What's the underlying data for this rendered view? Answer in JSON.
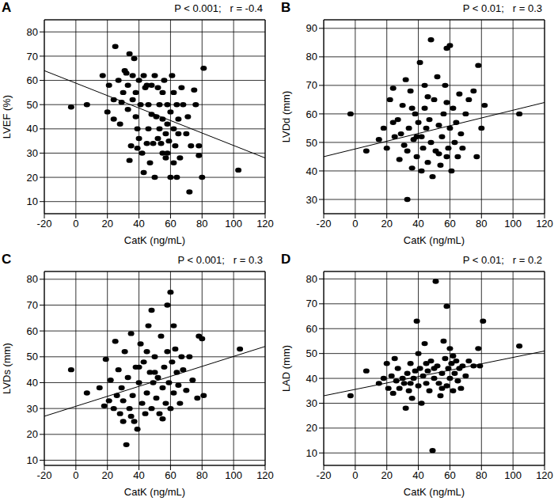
{
  "chart_data": [
    {
      "type": "scatter",
      "title": "A",
      "annotation": "P < 0.001;   r = -0.4",
      "x_label": "CatK (ng/mL)",
      "y_label": "LVEF (%)",
      "xlim": [
        -20,
        120
      ],
      "xticks": [
        -20,
        0,
        20,
        40,
        60,
        80,
        100,
        120
      ],
      "ylim": [
        5,
        85
      ],
      "yticks": [
        10,
        20,
        30,
        40,
        50,
        60,
        70,
        80
      ],
      "grid": true,
      "series": [
        {
          "type": "scatter",
          "marker": "circle",
          "color": "#000000",
          "x": [
            -3,
            7,
            17,
            20,
            21,
            24,
            25,
            24,
            27,
            28,
            30,
            31,
            32,
            33,
            34,
            35,
            34,
            36,
            37,
            38,
            38,
            39,
            39,
            40,
            41,
            42,
            43,
            43,
            44,
            45,
            46,
            47,
            48,
            48,
            49,
            50,
            51,
            52,
            53,
            53,
            54,
            55,
            55,
            56,
            57,
            57,
            58,
            58,
            59,
            60,
            60,
            61,
            62,
            62,
            63,
            64,
            65,
            65,
            66,
            67,
            68,
            70,
            71,
            72,
            73,
            75,
            76,
            78,
            78,
            80,
            81,
            103,
            33,
            36,
            40,
            45,
            50,
            55,
            29,
            46,
            52,
            58,
            62,
            64
          ],
          "values": [
            49,
            50,
            62,
            47,
            58,
            52,
            74,
            44,
            60,
            42,
            55,
            64,
            63,
            48,
            27,
            33,
            71,
            62,
            69,
            55,
            45,
            40,
            32,
            36,
            50,
            30,
            62,
            22,
            57,
            34,
            50,
            26,
            46,
            58,
            34,
            20,
            45,
            57,
            50,
            40,
            34,
            44,
            30,
            60,
            38,
            28,
            50,
            42,
            35,
            20,
            47,
            62,
            55,
            40,
            33,
            50,
            44,
            38,
            28,
            57,
            50,
            38,
            45,
            14,
            33,
            56,
            50,
            29,
            33,
            20,
            65,
            23,
            58,
            52,
            60,
            58,
            62,
            55,
            51,
            40,
            36,
            30,
            26,
            20
          ]
        },
        {
          "type": "line",
          "color": "#000000",
          "x": [
            -20,
            120
          ],
          "values": [
            64,
            28
          ]
        }
      ]
    },
    {
      "type": "scatter",
      "title": "B",
      "annotation": "P < 0.01;   r = 0.3",
      "x_label": "CatK (ng/mL)",
      "y_label": "LVDd (mm)",
      "xlim": [
        -20,
        120
      ],
      "xticks": [
        -20,
        0,
        20,
        40,
        60,
        80,
        100,
        120
      ],
      "ylim": [
        25,
        93
      ],
      "yticks": [
        30,
        40,
        50,
        60,
        70,
        80,
        90
      ],
      "grid": true,
      "series": [
        {
          "type": "scatter",
          "marker": "circle",
          "color": "#000000",
          "x": [
            -3,
            7,
            15,
            18,
            20,
            22,
            24,
            24,
            25,
            27,
            28,
            29,
            30,
            31,
            32,
            33,
            33,
            34,
            35,
            36,
            37,
            38,
            39,
            40,
            41,
            42,
            42,
            43,
            44,
            45,
            46,
            47,
            48,
            48,
            49,
            50,
            51,
            52,
            53,
            54,
            55,
            56,
            57,
            58,
            58,
            59,
            60,
            60,
            61,
            62,
            63,
            64,
            65,
            66,
            67,
            68,
            70,
            72,
            75,
            77,
            78,
            80,
            82,
            104,
            36,
            46,
            53,
            58,
            44,
            39
          ],
          "values": [
            60,
            47,
            51,
            55,
            48,
            65,
            57,
            69,
            52,
            58,
            44,
            53,
            63,
            49,
            72,
            30,
            47,
            55,
            68,
            41,
            51,
            60,
            45,
            57,
            78,
            52,
            40,
            48,
            62,
            55,
            43,
            58,
            86,
            50,
            38,
            65,
            47,
            73,
            56,
            42,
            52,
            60,
            70,
            83,
            45,
            48,
            84,
            55,
            40,
            62,
            50,
            57,
            45,
            67,
            53,
            48,
            60,
            65,
            68,
            45,
            77,
            55,
            63,
            60,
            62,
            66,
            46,
            64,
            70,
            52
          ]
        },
        {
          "type": "line",
          "color": "#000000",
          "x": [
            -20,
            120
          ],
          "values": [
            45,
            64
          ]
        }
      ]
    },
    {
      "type": "scatter",
      "title": "C",
      "annotation": "P < 0.001;   r = 0.3",
      "x_label": "CatK (ng/mL)",
      "y_label": "LVDs (mm)",
      "xlim": [
        -20,
        120
      ],
      "xticks": [
        -20,
        0,
        20,
        40,
        60,
        80,
        100,
        120
      ],
      "ylim": [
        8,
        83
      ],
      "yticks": [
        10,
        20,
        30,
        40,
        50,
        60,
        70,
        80
      ],
      "grid": true,
      "series": [
        {
          "type": "scatter",
          "marker": "circle",
          "color": "#000000",
          "x": [
            -3,
            7,
            15,
            18,
            19,
            21,
            22,
            24,
            25,
            26,
            27,
            28,
            29,
            30,
            31,
            32,
            33,
            34,
            35,
            36,
            37,
            38,
            39,
            40,
            41,
            42,
            43,
            44,
            45,
            46,
            47,
            48,
            48,
            49,
            50,
            51,
            52,
            53,
            54,
            55,
            56,
            57,
            58,
            58,
            59,
            60,
            60,
            61,
            62,
            63,
            64,
            65,
            66,
            67,
            68,
            70,
            72,
            74,
            77,
            78,
            80,
            81,
            104,
            40,
            50,
            55,
            62,
            45,
            35,
            30
          ],
          "values": [
            45,
            36,
            38,
            31,
            49,
            33,
            41,
            30,
            56,
            35,
            45,
            28,
            38,
            33,
            52,
            16,
            42,
            30,
            59,
            35,
            25,
            46,
            22,
            40,
            55,
            32,
            48,
            28,
            36,
            62,
            44,
            30,
            68,
            40,
            50,
            34,
            42,
            28,
            58,
            38,
            46,
            32,
            52,
            70,
            40,
            75,
            30,
            48,
            36,
            53,
            44,
            39,
            32,
            50,
            45,
            37,
            50,
            41,
            34,
            58,
            57,
            35,
            53,
            46,
            44,
            26,
            62,
            52,
            27,
            25
          ]
        },
        {
          "type": "line",
          "color": "#000000",
          "x": [
            -20,
            120
          ],
          "values": [
            27,
            54
          ]
        }
      ]
    },
    {
      "type": "scatter",
      "title": "D",
      "annotation": "P < 0.01;   r = 0.2",
      "x_label": "CatK (ng/mL)",
      "y_label": "LAD (mm)",
      "xlim": [
        -20,
        120
      ],
      "xticks": [
        -20,
        0,
        20,
        40,
        60,
        80,
        100,
        120
      ],
      "ylim": [
        5,
        83
      ],
      "yticks": [
        10,
        20,
        30,
        40,
        50,
        60,
        70,
        80
      ],
      "grid": true,
      "series": [
        {
          "type": "scatter",
          "marker": "circle",
          "color": "#000000",
          "x": [
            -3,
            7,
            15,
            18,
            20,
            21,
            23,
            24,
            25,
            26,
            27,
            28,
            30,
            31,
            32,
            33,
            34,
            35,
            36,
            37,
            38,
            39,
            40,
            41,
            42,
            43,
            44,
            45,
            46,
            47,
            48,
            49,
            50,
            51,
            52,
            53,
            54,
            55,
            56,
            57,
            58,
            58,
            59,
            60,
            60,
            61,
            62,
            63,
            64,
            65,
            66,
            67,
            68,
            70,
            72,
            75,
            78,
            79,
            81,
            104,
            45,
            55,
            62,
            35,
            40,
            50
          ],
          "values": [
            33,
            43,
            38,
            40,
            46,
            36,
            41,
            34,
            48,
            39,
            44,
            36,
            40,
            38,
            28,
            42,
            35,
            46,
            32,
            40,
            43,
            63,
            37,
            44,
            30,
            41,
            54,
            38,
            43,
            35,
            47,
            11,
            40,
            79,
            45,
            38,
            33,
            42,
            55,
            48,
            69,
            37,
            44,
            52,
            40,
            46,
            35,
            42,
            47,
            39,
            44,
            36,
            45,
            41,
            47,
            45,
            52,
            45,
            63,
            53,
            46,
            36,
            49,
            38,
            50,
            44
          ]
        },
        {
          "type": "line",
          "color": "#000000",
          "x": [
            -20,
            120
          ],
          "values": [
            33,
            51
          ]
        }
      ]
    }
  ]
}
